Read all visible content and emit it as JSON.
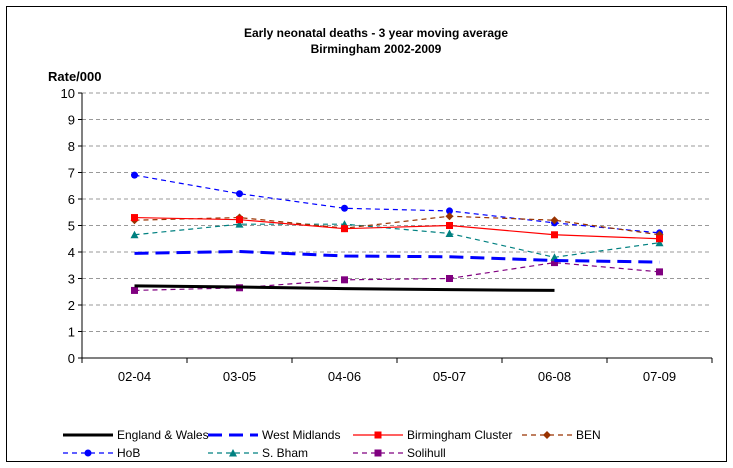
{
  "chart_data": {
    "type": "line",
    "title": [
      "Early neonatal deaths - 3 year moving average",
      "Birmingham 2002-2009"
    ],
    "ylabel": "Rate/000",
    "xlabel": "",
    "categories": [
      "02-04",
      "03-05",
      "04-06",
      "05-07",
      "06-08",
      "07-09"
    ],
    "ylim": [
      0,
      10
    ],
    "yticks": [
      0,
      1,
      2,
      3,
      4,
      5,
      6,
      7,
      8,
      9,
      10
    ],
    "grid": "horizontal dashed",
    "legend_position": "bottom",
    "series": [
      {
        "name": "England & Wales",
        "values": [
          2.72,
          2.68,
          2.62,
          2.58,
          2.55,
          null
        ],
        "color": "#000000",
        "dash": "solid",
        "marker": "none",
        "weight": "thick"
      },
      {
        "name": "West Midlands",
        "values": [
          3.95,
          4.02,
          3.85,
          3.82,
          3.68,
          3.62
        ],
        "color": "#0000ff",
        "dash": "long-dash",
        "marker": "none",
        "weight": "thick"
      },
      {
        "name": "Birmingham Cluster",
        "values": [
          5.3,
          5.22,
          4.88,
          5.0,
          4.65,
          4.5
        ],
        "color": "#ff0000",
        "dash": "solid",
        "marker": "square",
        "weight": "normal"
      },
      {
        "name": "BEN",
        "values": [
          5.2,
          5.3,
          4.9,
          5.35,
          5.2,
          4.65
        ],
        "color": "#993300",
        "dash": "dash",
        "marker": "diamond",
        "weight": "normal"
      },
      {
        "name": "HoB",
        "values": [
          6.9,
          6.2,
          5.65,
          5.55,
          5.1,
          4.72
        ],
        "color": "#0000ff",
        "dash": "dash",
        "marker": "circle",
        "weight": "normal"
      },
      {
        "name": "S. Bham",
        "values": [
          4.65,
          5.05,
          5.05,
          4.7,
          3.8,
          4.35
        ],
        "color": "#008080",
        "dash": "dash",
        "marker": "triangle",
        "weight": "normal"
      },
      {
        "name": "Solihull",
        "values": [
          2.55,
          2.65,
          2.95,
          3.0,
          3.6,
          3.25
        ],
        "color": "#800080",
        "dash": "dash",
        "marker": "square",
        "weight": "normal"
      }
    ]
  }
}
